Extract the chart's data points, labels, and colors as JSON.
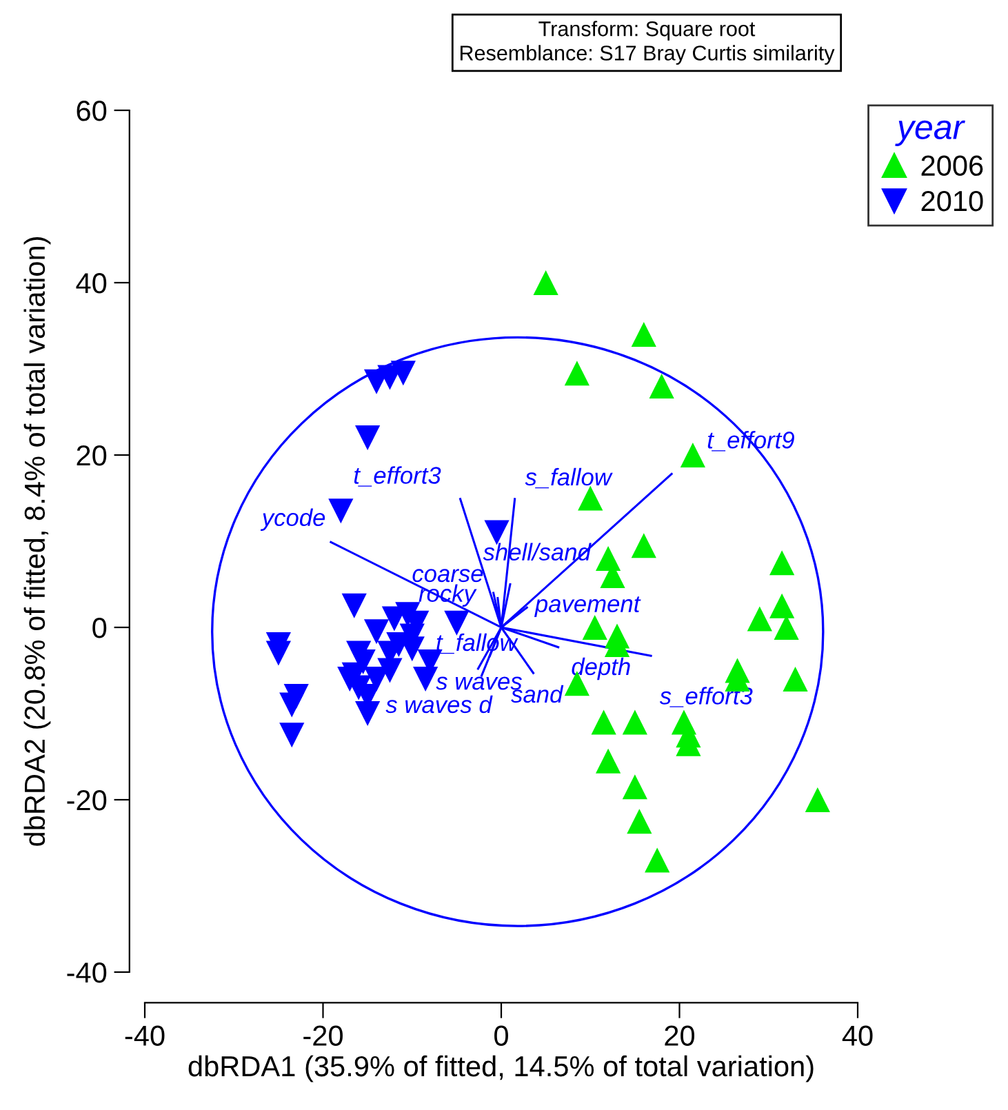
{
  "chart_data": {
    "type": "scatter",
    "xlabel": "dbRDA1 (35.9% of fitted, 14.5% of total variation)",
    "ylabel": "dbRDA2 (20.8% of fitted, 8.4% of total variation)",
    "legend_title": "year",
    "legend": "top right",
    "grid": false,
    "xlim": [
      -40,
      40
    ],
    "xticks": [
      -40,
      -20,
      0,
      20,
      40
    ],
    "ylim": [
      -40,
      60
    ],
    "yticks": [
      -40,
      -20,
      0,
      20,
      40,
      60
    ],
    "annotations": [
      "Transform: Square root\nResemblance: S17 Bray Curtis similarity",
      "ycode",
      "t_effort3",
      "s_fallow",
      "t_effort9",
      "shell/sand",
      "coarse",
      "rocky",
      "pavement",
      "depth",
      "sand",
      "s_effort3",
      "t_fallow",
      "s waves",
      "s waves d"
    ],
    "series": [
      {
        "name": "2006",
        "marker": "triangle",
        "color": "#00ee00",
        "x": [
          5,
          16,
          8.5,
          18,
          21.5,
          10,
          16,
          12,
          12.5,
          31.5,
          31.5,
          29,
          32,
          10.5,
          13,
          13,
          8.5,
          26.5,
          26.5,
          33,
          11.5,
          15,
          20.5,
          21,
          21,
          12,
          15,
          15.5,
          17.5,
          35.5
        ],
        "values": [
          40,
          34,
          29.5,
          28,
          20,
          15,
          9.5,
          8,
          6,
          7.5,
          2.5,
          1,
          0,
          0,
          -1,
          -2,
          -6.5,
          -5,
          -6,
          -6,
          -11,
          -11,
          -11,
          -12.5,
          -13.5,
          -15.5,
          -18.5,
          -22.5,
          -27,
          -20
        ]
      },
      {
        "name": "2010",
        "marker": "triangle_down",
        "color": "#0000ff",
        "x": [
          -12.5,
          -14,
          -11,
          -15,
          -18,
          -0.5,
          -16.5,
          -10.5,
          -12,
          -9.5,
          -5,
          -14,
          -10,
          -11.5,
          -10,
          -8,
          -12.5,
          -25,
          -25,
          -23,
          -23.5,
          -23.5,
          -16,
          -15.5,
          -17,
          -16,
          -15,
          -15,
          -14,
          -8.5,
          -12.5,
          -16.5
        ],
        "values": [
          29,
          28.5,
          29.5,
          22,
          13.5,
          11,
          2.5,
          1.5,
          1,
          0.5,
          0.5,
          -0.5,
          -1,
          -2,
          -2.5,
          -4,
          -3,
          -2,
          -3,
          -8,
          -9,
          -12.5,
          -3,
          -4,
          -6,
          -7,
          -8,
          -10,
          -6,
          -6,
          -5,
          -5.5
        ]
      }
    ]
  }
}
